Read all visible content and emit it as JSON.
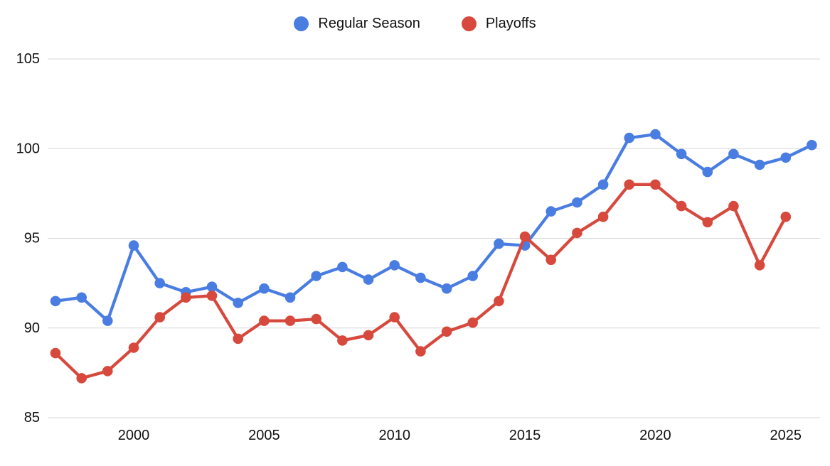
{
  "chart_data": {
    "type": "line",
    "title": "",
    "xlabel": "",
    "ylabel": "",
    "x": [
      1997,
      1998,
      1999,
      2000,
      2001,
      2002,
      2003,
      2004,
      2005,
      2006,
      2007,
      2008,
      2009,
      2010,
      2011,
      2012,
      2013,
      2014,
      2015,
      2016,
      2017,
      2018,
      2019,
      2020,
      2021,
      2022,
      2023,
      2024,
      2025,
      2026
    ],
    "series": [
      {
        "name": "Regular Season",
        "color": "#4a7de2",
        "values": [
          91.5,
          91.7,
          90.4,
          94.6,
          92.5,
          92.0,
          92.3,
          91.4,
          92.2,
          91.7,
          92.9,
          93.4,
          92.7,
          93.5,
          92.8,
          92.2,
          92.9,
          94.7,
          94.6,
          96.5,
          97.0,
          98.0,
          100.6,
          100.8,
          99.7,
          98.7,
          99.7,
          99.1,
          99.5,
          100.2
        ]
      },
      {
        "name": "Playoffs",
        "color": "#d7493d",
        "values": [
          88.6,
          87.2,
          87.6,
          88.9,
          90.6,
          91.7,
          91.8,
          89.4,
          90.4,
          90.4,
          90.5,
          89.3,
          89.6,
          90.6,
          88.7,
          89.8,
          90.3,
          91.5,
          95.1,
          93.8,
          95.3,
          96.2,
          98.0,
          98.0,
          96.8,
          95.9,
          96.8,
          93.5,
          96.2,
          null
        ]
      }
    ],
    "ylim": [
      85,
      105
    ],
    "y_ticks": [
      85,
      90,
      95,
      100,
      105
    ],
    "x_ticks": [
      2000,
      2005,
      2010,
      2015,
      2020,
      2025
    ],
    "grid": true,
    "legend_position": "top",
    "gridline_color": "#d7d7d7",
    "tick_label_color": "#111111"
  }
}
